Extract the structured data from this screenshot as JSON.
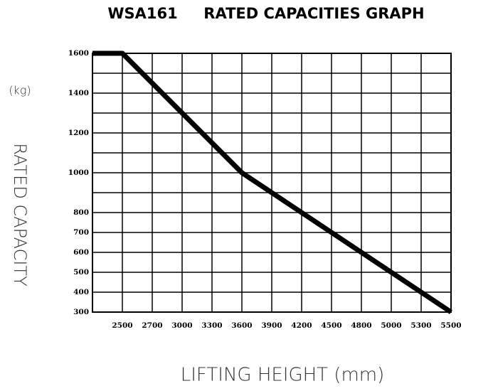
{
  "chart_data": {
    "type": "line",
    "title": "WSA161     RATED CAPACITIES GRAPH",
    "y_unit": "(kg)",
    "y_label": "RATED CAPACITY",
    "x_label": "LIFTING HEIGHT (mm)",
    "categories": [
      null,
      "2500",
      "2700",
      "3000",
      "3300",
      "3600",
      "3900",
      "4200",
      "4500",
      "4800",
      "5000",
      "5300",
      "5500"
    ],
    "series": [
      {
        "color": "#000000",
        "values": [
          1600,
          1600,
          1450,
          1300,
          1150,
          1000,
          900,
          800,
          700,
          600,
          500,
          400,
          300
        ]
      }
    ],
    "ylim": [
      300,
      1600
    ],
    "yticks": [
      300,
      400,
      500,
      600,
      700,
      800,
      1000,
      1200,
      1400,
      1600
    ],
    "ygrid": [
      300,
      400,
      500,
      600,
      700,
      800,
      900,
      1000,
      1100,
      1200,
      1300,
      1400,
      1500,
      1600
    ],
    "grid": true
  }
}
